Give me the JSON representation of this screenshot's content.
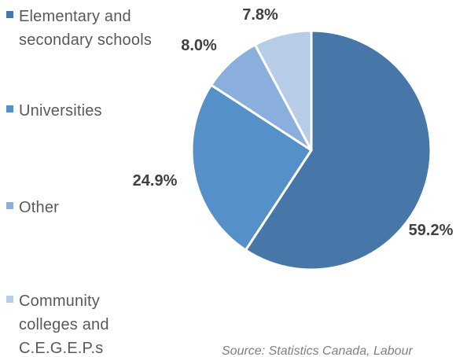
{
  "chart_data": {
    "type": "pie",
    "slices": [
      {
        "label": "Elementary and secondary schools",
        "value": 59.2,
        "value_label": "59.2%",
        "color": "#4677a8"
      },
      {
        "label": "Universities",
        "value": 24.9,
        "value_label": "24.9%",
        "color": "#5590c8"
      },
      {
        "label": "Other",
        "value": 8.0,
        "value_label": "8.0%",
        "color": "#8aafdc"
      },
      {
        "label": "Community colleges and C.E.G.E.P.s",
        "value": 7.8,
        "value_label": "7.8%",
        "color": "#b7cce6"
      }
    ],
    "legend": {
      "placement": "left",
      "entries": [
        {
          "lines": [
            "Elementary and",
            "secondary schools"
          ],
          "color": "#4677a8"
        },
        {
          "lines": [
            "Universities"
          ],
          "color": "#5590c8"
        },
        {
          "lines": [
            "Other"
          ],
          "color": "#8aafdc"
        },
        {
          "lines": [
            "Community",
            "colleges and",
            "C.E.G.E.P.s"
          ],
          "color": "#b7cce6"
        }
      ]
    },
    "source": "Source: Statistics Canada, Labour"
  }
}
